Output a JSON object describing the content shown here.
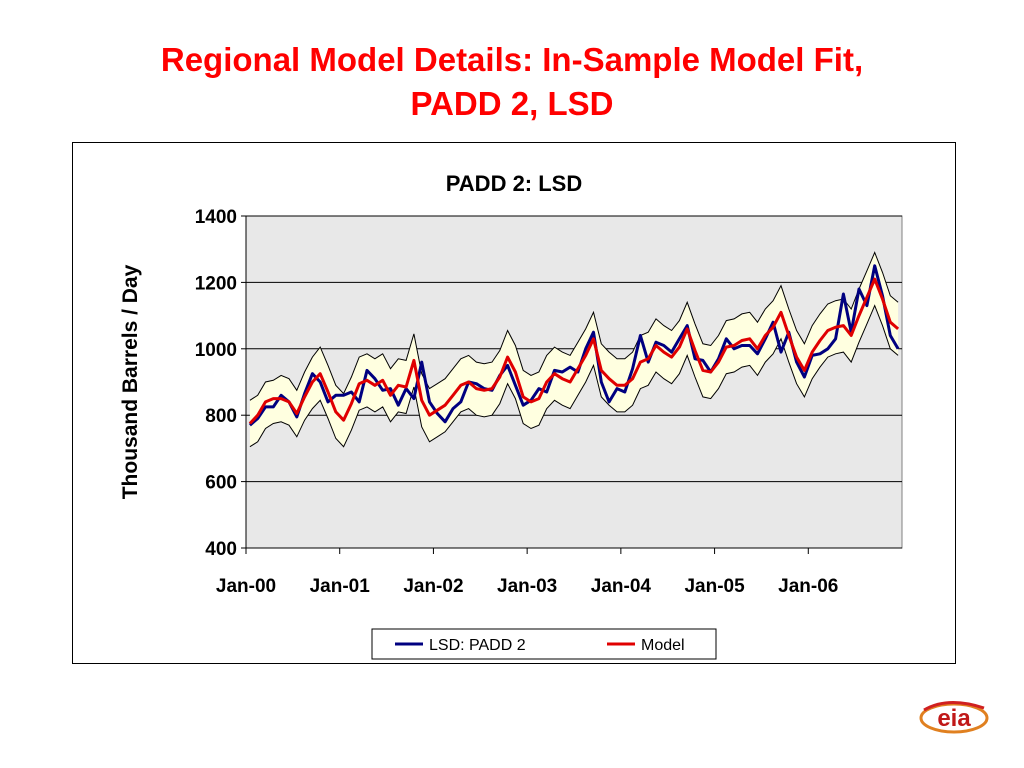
{
  "slide": {
    "title_line1": "Regional Model Details:  In-Sample Model Fit,",
    "title_line2": "PADD 2, LSD"
  },
  "logo": {
    "text": "eia",
    "icon": "eia-logo"
  },
  "colors": {
    "title": "#ff0000",
    "actual": "#000080",
    "model": "#e00000",
    "band_fill": "#ffffe0",
    "plot_bg": "#e8e8e8"
  },
  "chart_data": {
    "type": "line",
    "title": "PADD 2:  LSD",
    "xlabel": "",
    "ylabel": "Thousand Barrels / Day",
    "ylim": [
      400,
      1400
    ],
    "yticks": [
      400,
      600,
      800,
      1000,
      1200,
      1400
    ],
    "x_start": "Jan-00",
    "x_end": "Dec-06",
    "x_tick_labels": [
      "Jan-00",
      "Jan-01",
      "Jan-02",
      "Jan-03",
      "Jan-04",
      "Jan-05",
      "Jan-06"
    ],
    "grid": "horizontal major gridlines",
    "legend_position": "bottom",
    "series": [
      {
        "name": "LSD:  PADD 2",
        "values": [
          770,
          790,
          825,
          825,
          860,
          840,
          795,
          865,
          925,
          900,
          840,
          860,
          860,
          870,
          840,
          935,
          910,
          875,
          880,
          830,
          880,
          850,
          960,
          840,
          805,
          780,
          820,
          840,
          900,
          895,
          880,
          875,
          920,
          950,
          890,
          830,
          845,
          880,
          870,
          935,
          930,
          945,
          930,
          1000,
          1050,
          900,
          840,
          880,
          870,
          940,
          1040,
          960,
          1020,
          1010,
          990,
          1030,
          1070,
          970,
          965,
          930,
          970,
          1030,
          1000,
          1010,
          1010,
          985,
          1030,
          1080,
          990,
          1050,
          960,
          915,
          980,
          985,
          1000,
          1030,
          1165,
          1050,
          1180,
          1130,
          1250,
          1160,
          1040,
          1000
        ]
      },
      {
        "name": "Model",
        "values": [
          775,
          800,
          840,
          850,
          850,
          840,
          805,
          855,
          900,
          925,
          870,
          810,
          785,
          835,
          895,
          905,
          890,
          905,
          860,
          890,
          885,
          965,
          845,
          800,
          815,
          830,
          860,
          890,
          900,
          880,
          875,
          880,
          915,
          975,
          930,
          855,
          840,
          850,
          900,
          925,
          910,
          900,
          940,
          980,
          1030,
          935,
          910,
          890,
          890,
          910,
          960,
          970,
          1010,
          990,
          975,
          1005,
          1060,
          995,
          935,
          930,
          960,
          1005,
          1010,
          1025,
          1030,
          1000,
          1040,
          1065,
          1110,
          1040,
          975,
          935,
          990,
          1025,
          1055,
          1065,
          1070,
          1040,
          1100,
          1155,
          1210,
          1150,
          1080,
          1060
        ]
      }
    ],
    "confidence_band": {
      "upper": [
        845,
        860,
        900,
        905,
        920,
        910,
        875,
        930,
        975,
        1005,
        950,
        890,
        865,
        915,
        975,
        985,
        970,
        985,
        940,
        970,
        965,
        1045,
        925,
        880,
        895,
        910,
        940,
        970,
        980,
        960,
        955,
        960,
        995,
        1055,
        1010,
        935,
        920,
        930,
        980,
        1005,
        990,
        980,
        1020,
        1060,
        1110,
        1015,
        990,
        970,
        970,
        990,
        1040,
        1050,
        1090,
        1070,
        1055,
        1085,
        1140,
        1075,
        1015,
        1010,
        1040,
        1085,
        1090,
        1105,
        1110,
        1080,
        1120,
        1145,
        1190,
        1120,
        1055,
        1015,
        1070,
        1105,
        1135,
        1145,
        1150,
        1120,
        1180,
        1235,
        1290,
        1230,
        1160,
        1140
      ],
      "lower": [
        705,
        720,
        760,
        775,
        780,
        770,
        735,
        785,
        820,
        845,
        790,
        730,
        705,
        755,
        815,
        825,
        810,
        825,
        780,
        810,
        805,
        885,
        765,
        720,
        735,
        750,
        780,
        810,
        820,
        800,
        795,
        800,
        835,
        895,
        850,
        775,
        760,
        770,
        820,
        845,
        830,
        820,
        860,
        900,
        950,
        855,
        830,
        810,
        810,
        830,
        880,
        890,
        930,
        910,
        895,
        925,
        980,
        915,
        855,
        850,
        880,
        925,
        930,
        945,
        950,
        920,
        960,
        985,
        1030,
        960,
        895,
        855,
        910,
        945,
        975,
        985,
        990,
        960,
        1020,
        1075,
        1130,
        1070,
        1000,
        980
      ]
    }
  }
}
